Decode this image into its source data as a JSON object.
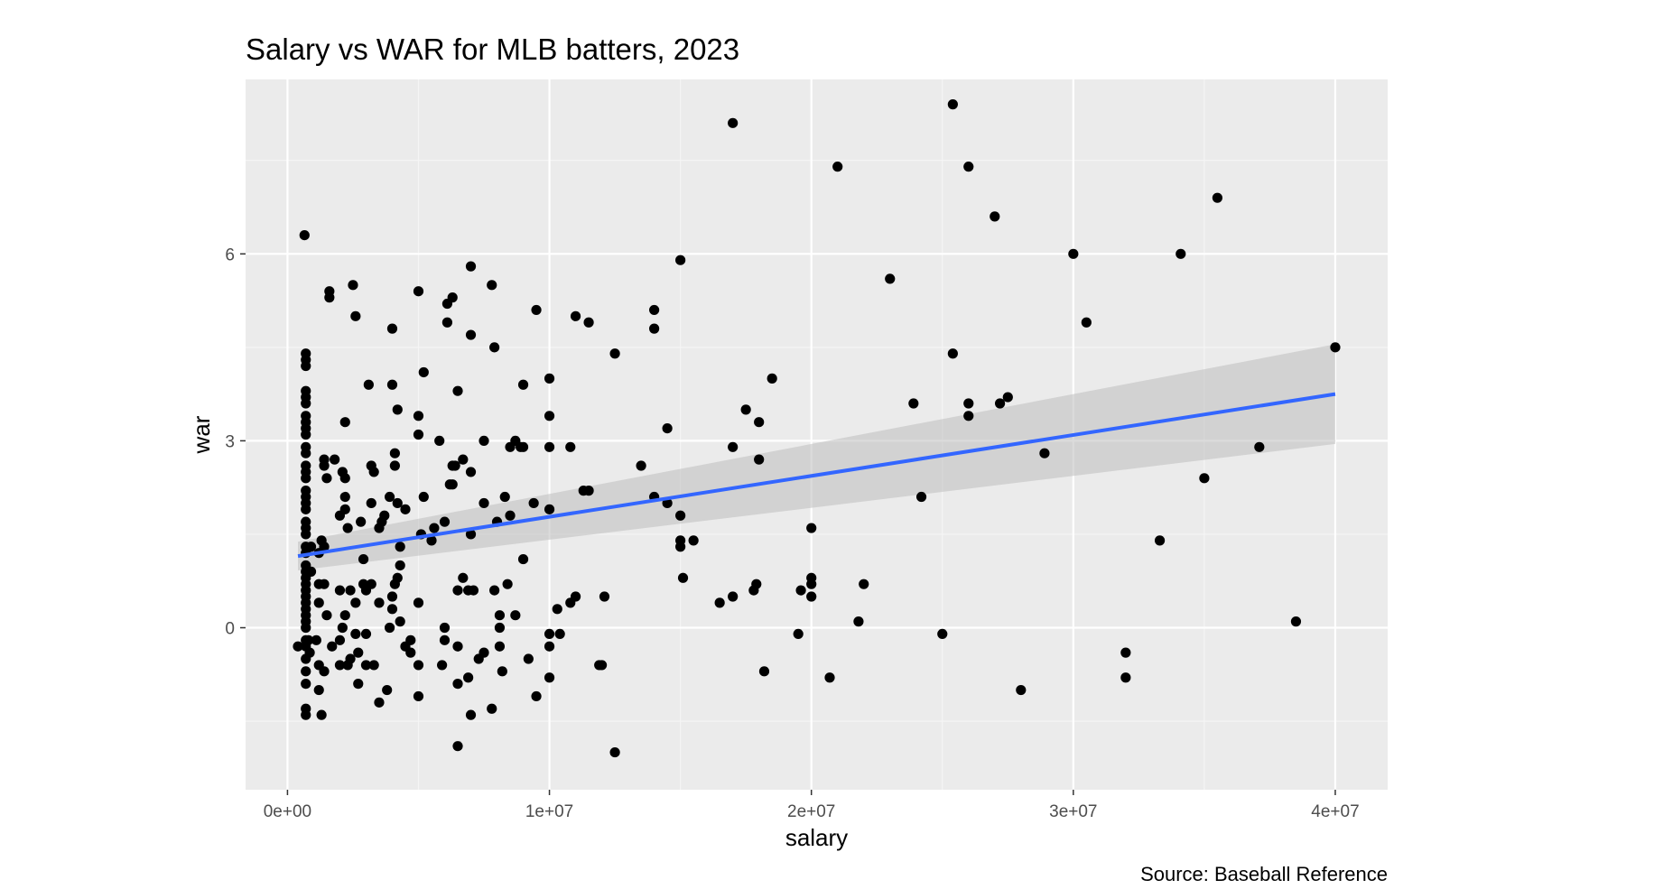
{
  "chart_data": {
    "type": "scatter",
    "title": "Salary vs WAR for MLB batters, 2023",
    "xlabel": "salary",
    "ylabel": "war",
    "caption": "Source: Baseball Reference",
    "xlim": [
      -1600000,
      42000000
    ],
    "ylim": [
      -2.6,
      8.8
    ],
    "x_ticks": [
      0,
      10000000,
      20000000,
      30000000,
      40000000
    ],
    "x_tick_labels": [
      "0e+00",
      "1e+07",
      "2e+07",
      "3e+07",
      "4e+07"
    ],
    "y_ticks": [
      0,
      3,
      6
    ],
    "y_tick_labels": [
      "0",
      "3",
      "6"
    ],
    "grid": true,
    "legend": "none",
    "colors": {
      "panel": "#ebebeb",
      "grid_major": "#ffffff",
      "grid_minor": "#f5f5f5",
      "point": "#000000",
      "fit_line": "#3366ff",
      "ribbon": "#bdbdbd"
    },
    "trend": {
      "method": "lm",
      "x": [
        400000,
        40000000
      ],
      "y": [
        1.15,
        3.75
      ],
      "ribbon_lower": [
        0.92,
        2.95
      ],
      "ribbon_upper": [
        1.38,
        4.55
      ]
    },
    "points": [
      [
        400000,
        -0.3
      ],
      [
        650000,
        6.3
      ],
      [
        700000,
        4.4
      ],
      [
        700000,
        4.3
      ],
      [
        700000,
        4.2
      ],
      [
        700000,
        3.8
      ],
      [
        700000,
        3.7
      ],
      [
        700000,
        3.6
      ],
      [
        700000,
        3.4
      ],
      [
        700000,
        3.3
      ],
      [
        700000,
        3.2
      ],
      [
        700000,
        3.1
      ],
      [
        700000,
        2.9
      ],
      [
        700000,
        2.8
      ],
      [
        700000,
        2.6
      ],
      [
        700000,
        2.5
      ],
      [
        700000,
        2.4
      ],
      [
        700000,
        2.2
      ],
      [
        700000,
        2.1
      ],
      [
        700000,
        2.0
      ],
      [
        700000,
        1.9
      ],
      [
        700000,
        1.7
      ],
      [
        700000,
        1.6
      ],
      [
        700000,
        1.5
      ],
      [
        700000,
        1.3
      ],
      [
        700000,
        1.2
      ],
      [
        700000,
        1.0
      ],
      [
        700000,
        0.9
      ],
      [
        700000,
        0.8
      ],
      [
        700000,
        0.7
      ],
      [
        700000,
        0.6
      ],
      [
        700000,
        0.5
      ],
      [
        700000,
        0.4
      ],
      [
        700000,
        0.3
      ],
      [
        700000,
        0.2
      ],
      [
        700000,
        0.1
      ],
      [
        700000,
        0.0
      ],
      [
        700000,
        -0.2
      ],
      [
        700000,
        -0.3
      ],
      [
        700000,
        -0.5
      ],
      [
        700000,
        -0.7
      ],
      [
        700000,
        -0.9
      ],
      [
        700000,
        -1.3
      ],
      [
        700000,
        -1.4
      ],
      [
        800000,
        -0.2
      ],
      [
        850000,
        -0.4
      ],
      [
        900000,
        1.3
      ],
      [
        900000,
        0.9
      ],
      [
        1100000,
        -0.2
      ],
      [
        1200000,
        1.2
      ],
      [
        1200000,
        0.7
      ],
      [
        1200000,
        0.4
      ],
      [
        1200000,
        -0.6
      ],
      [
        1200000,
        -1.0
      ],
      [
        1300000,
        1.4
      ],
      [
        1300000,
        -1.4
      ],
      [
        1400000,
        2.7
      ],
      [
        1400000,
        2.6
      ],
      [
        1400000,
        1.3
      ],
      [
        1400000,
        0.7
      ],
      [
        1400000,
        -0.7
      ],
      [
        1500000,
        2.4
      ],
      [
        1500000,
        0.2
      ],
      [
        1600000,
        5.4
      ],
      [
        1600000,
        5.3
      ],
      [
        1700000,
        -0.3
      ],
      [
        1800000,
        2.7
      ],
      [
        2000000,
        1.8
      ],
      [
        2000000,
        0.6
      ],
      [
        2000000,
        -0.2
      ],
      [
        2000000,
        -0.6
      ],
      [
        2100000,
        2.5
      ],
      [
        2100000,
        0.0
      ],
      [
        2200000,
        3.3
      ],
      [
        2200000,
        2.4
      ],
      [
        2200000,
        2.1
      ],
      [
        2200000,
        1.9
      ],
      [
        2200000,
        0.2
      ],
      [
        2300000,
        1.6
      ],
      [
        2300000,
        -0.6
      ],
      [
        2400000,
        0.6
      ],
      [
        2400000,
        -0.5
      ],
      [
        2500000,
        5.5
      ],
      [
        2600000,
        5.0
      ],
      [
        2600000,
        0.4
      ],
      [
        2600000,
        -0.1
      ],
      [
        2700000,
        -0.9
      ],
      [
        2700000,
        -0.4
      ],
      [
        2800000,
        1.7
      ],
      [
        2900000,
        1.1
      ],
      [
        2900000,
        0.7
      ],
      [
        3000000,
        -0.6
      ],
      [
        3000000,
        -0.1
      ],
      [
        3000000,
        0.6
      ],
      [
        3100000,
        3.9
      ],
      [
        3200000,
        2.6
      ],
      [
        3200000,
        2.0
      ],
      [
        3200000,
        0.7
      ],
      [
        3300000,
        2.5
      ],
      [
        3300000,
        -0.6
      ],
      [
        3500000,
        1.6
      ],
      [
        3500000,
        0.4
      ],
      [
        3500000,
        -1.2
      ],
      [
        3600000,
        1.7
      ],
      [
        3700000,
        1.8
      ],
      [
        3800000,
        -1.0
      ],
      [
        3900000,
        2.1
      ],
      [
        3900000,
        0.0
      ],
      [
        4000000,
        3.9
      ],
      [
        4000000,
        4.8
      ],
      [
        4000000,
        0.5
      ],
      [
        4000000,
        0.3
      ],
      [
        4100000,
        2.6
      ],
      [
        4100000,
        2.8
      ],
      [
        4100000,
        0.7
      ],
      [
        4200000,
        3.5
      ],
      [
        4200000,
        2.0
      ],
      [
        4200000,
        0.8
      ],
      [
        4300000,
        1.3
      ],
      [
        4300000,
        1.0
      ],
      [
        4300000,
        0.1
      ],
      [
        4500000,
        1.9
      ],
      [
        4500000,
        -0.3
      ],
      [
        4700000,
        -0.4
      ],
      [
        4700000,
        -0.2
      ],
      [
        5000000,
        5.4
      ],
      [
        5000000,
        3.4
      ],
      [
        5000000,
        3.1
      ],
      [
        5000000,
        0.4
      ],
      [
        5000000,
        -0.6
      ],
      [
        5000000,
        -1.1
      ],
      [
        5100000,
        1.5
      ],
      [
        5200000,
        4.1
      ],
      [
        5200000,
        2.1
      ],
      [
        5500000,
        1.4
      ],
      [
        5600000,
        1.6
      ],
      [
        5800000,
        3.0
      ],
      [
        5900000,
        -0.6
      ],
      [
        6000000,
        1.7
      ],
      [
        6000000,
        0.0
      ],
      [
        6000000,
        -0.2
      ],
      [
        6100000,
        5.2
      ],
      [
        6100000,
        4.9
      ],
      [
        6200000,
        2.3
      ],
      [
        6300000,
        5.3
      ],
      [
        6300000,
        2.6
      ],
      [
        6300000,
        2.3
      ],
      [
        6400000,
        2.6
      ],
      [
        6500000,
        3.8
      ],
      [
        6500000,
        0.6
      ],
      [
        6500000,
        -0.3
      ],
      [
        6500000,
        -0.9
      ],
      [
        6500000,
        -1.9
      ],
      [
        6700000,
        2.7
      ],
      [
        6700000,
        0.8
      ],
      [
        6900000,
        0.6
      ],
      [
        6900000,
        -0.8
      ],
      [
        7000000,
        5.8
      ],
      [
        7000000,
        4.7
      ],
      [
        7000000,
        2.5
      ],
      [
        7000000,
        1.5
      ],
      [
        7000000,
        -1.4
      ],
      [
        7100000,
        0.6
      ],
      [
        7300000,
        -0.5
      ],
      [
        7500000,
        2.0
      ],
      [
        7500000,
        3.0
      ],
      [
        7500000,
        -0.4
      ],
      [
        7800000,
        5.5
      ],
      [
        7800000,
        -1.3
      ],
      [
        7900000,
        4.5
      ],
      [
        7900000,
        0.6
      ],
      [
        8000000,
        1.7
      ],
      [
        8100000,
        0.2
      ],
      [
        8100000,
        0.0
      ],
      [
        8100000,
        -0.3
      ],
      [
        8200000,
        -0.7
      ],
      [
        8300000,
        2.1
      ],
      [
        8400000,
        0.7
      ],
      [
        8500000,
        2.9
      ],
      [
        8500000,
        1.8
      ],
      [
        8700000,
        0.2
      ],
      [
        8700000,
        3.0
      ],
      [
        8900000,
        2.9
      ],
      [
        9000000,
        3.9
      ],
      [
        9000000,
        2.9
      ],
      [
        9000000,
        1.1
      ],
      [
        9200000,
        -0.5
      ],
      [
        9400000,
        2.0
      ],
      [
        9500000,
        5.1
      ],
      [
        9500000,
        -1.1
      ],
      [
        10000000,
        4.0
      ],
      [
        10000000,
        3.4
      ],
      [
        10000000,
        2.9
      ],
      [
        10000000,
        1.9
      ],
      [
        10000000,
        -0.1
      ],
      [
        10000000,
        -0.3
      ],
      [
        10000000,
        -0.8
      ],
      [
        10300000,
        0.3
      ],
      [
        10400000,
        -0.1
      ],
      [
        10800000,
        2.9
      ],
      [
        10800000,
        0.4
      ],
      [
        11000000,
        5.0
      ],
      [
        11000000,
        0.5
      ],
      [
        11300000,
        2.2
      ],
      [
        11500000,
        4.9
      ],
      [
        11500000,
        2.2
      ],
      [
        11900000,
        -0.6
      ],
      [
        12000000,
        -0.6
      ],
      [
        12100000,
        0.5
      ],
      [
        12500000,
        4.4
      ],
      [
        12500000,
        -2.0
      ],
      [
        13500000,
        2.6
      ],
      [
        14000000,
        5.1
      ],
      [
        14000000,
        4.8
      ],
      [
        14000000,
        2.1
      ],
      [
        14500000,
        3.2
      ],
      [
        14500000,
        2.0
      ],
      [
        15000000,
        5.9
      ],
      [
        15000000,
        1.8
      ],
      [
        15000000,
        1.4
      ],
      [
        15000000,
        1.3
      ],
      [
        15100000,
        0.8
      ],
      [
        15500000,
        1.4
      ],
      [
        16500000,
        0.4
      ],
      [
        17000000,
        8.1
      ],
      [
        17000000,
        2.9
      ],
      [
        17000000,
        0.5
      ],
      [
        17500000,
        3.5
      ],
      [
        17800000,
        0.6
      ],
      [
        17900000,
        0.7
      ],
      [
        18000000,
        3.3
      ],
      [
        18000000,
        2.7
      ],
      [
        18200000,
        -0.7
      ],
      [
        18500000,
        4.0
      ],
      [
        19500000,
        -0.1
      ],
      [
        19600000,
        0.6
      ],
      [
        20000000,
        1.6
      ],
      [
        20000000,
        0.8
      ],
      [
        20000000,
        0.7
      ],
      [
        20000000,
        0.5
      ],
      [
        20700000,
        -0.8
      ],
      [
        21000000,
        7.4
      ],
      [
        21800000,
        0.1
      ],
      [
        22000000,
        0.7
      ],
      [
        23000000,
        5.6
      ],
      [
        23900000,
        3.6
      ],
      [
        24200000,
        2.1
      ],
      [
        25000000,
        -0.1
      ],
      [
        25400000,
        8.4
      ],
      [
        25400000,
        4.4
      ],
      [
        26000000,
        7.4
      ],
      [
        26000000,
        3.6
      ],
      [
        26000000,
        3.4
      ],
      [
        27000000,
        6.6
      ],
      [
        27200000,
        3.6
      ],
      [
        27500000,
        3.7
      ],
      [
        28000000,
        -1.0
      ],
      [
        28900000,
        2.8
      ],
      [
        30000000,
        6.0
      ],
      [
        30500000,
        4.9
      ],
      [
        32000000,
        -0.4
      ],
      [
        32000000,
        -0.8
      ],
      [
        33300000,
        1.4
      ],
      [
        34100000,
        6.0
      ],
      [
        35000000,
        2.4
      ],
      [
        35500000,
        6.9
      ],
      [
        37100000,
        2.9
      ],
      [
        38500000,
        0.1
      ],
      [
        40000000,
        4.5
      ]
    ]
  }
}
